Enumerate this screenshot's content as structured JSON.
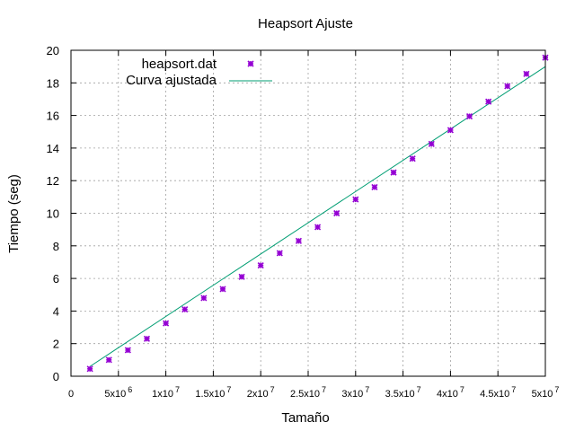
{
  "chart_data": {
    "type": "scatter",
    "title": "Heapsort Ajuste",
    "xlabel": "Tamaño",
    "ylabel": "Tiempo (seg)",
    "xlim": [
      0,
      50000000
    ],
    "ylim": [
      0,
      20
    ],
    "grid": true,
    "legend_position": "top-left",
    "x_ticks": [
      {
        "value": 0,
        "mantissa": "0",
        "exponent": ""
      },
      {
        "value": 5000000,
        "mantissa": "5x10",
        "exponent": "6"
      },
      {
        "value": 10000000,
        "mantissa": "1x10",
        "exponent": "7"
      },
      {
        "value": 15000000,
        "mantissa": "1.5x10",
        "exponent": "7"
      },
      {
        "value": 20000000,
        "mantissa": "2x10",
        "exponent": "7"
      },
      {
        "value": 25000000,
        "mantissa": "2.5x10",
        "exponent": "7"
      },
      {
        "value": 30000000,
        "mantissa": "3x10",
        "exponent": "7"
      },
      {
        "value": 35000000,
        "mantissa": "3.5x10",
        "exponent": "7"
      },
      {
        "value": 40000000,
        "mantissa": "4x10",
        "exponent": "7"
      },
      {
        "value": 45000000,
        "mantissa": "4.5x10",
        "exponent": "7"
      },
      {
        "value": 50000000,
        "mantissa": "5x10",
        "exponent": "7"
      }
    ],
    "y_ticks": [
      "0",
      "2",
      "4",
      "6",
      "8",
      "10",
      "12",
      "14",
      "16",
      "18",
      "20"
    ],
    "series": [
      {
        "name": "heapsort.dat",
        "kind": "points",
        "color": "#9400d3",
        "x": [
          2000000,
          4000000,
          6000000,
          8000000,
          10000000,
          12000000,
          14000000,
          16000000,
          18000000,
          20000000,
          22000000,
          24000000,
          26000000,
          28000000,
          30000000,
          32000000,
          34000000,
          36000000,
          38000000,
          40000000,
          42000000,
          44000000,
          46000000,
          48000000,
          50000000
        ],
        "y": [
          0.45,
          1.0,
          1.6,
          2.3,
          3.25,
          4.1,
          4.8,
          5.35,
          6.1,
          6.8,
          7.55,
          8.3,
          9.15,
          10.0,
          10.85,
          11.6,
          12.5,
          13.35,
          14.25,
          15.1,
          15.95,
          16.85,
          17.8,
          18.55,
          19.55
        ]
      },
      {
        "name": "Curva ajustada",
        "kind": "line",
        "color": "#009e73",
        "x": [
          2000000,
          50000000
        ],
        "y": [
          0.6,
          19.0
        ]
      }
    ]
  }
}
